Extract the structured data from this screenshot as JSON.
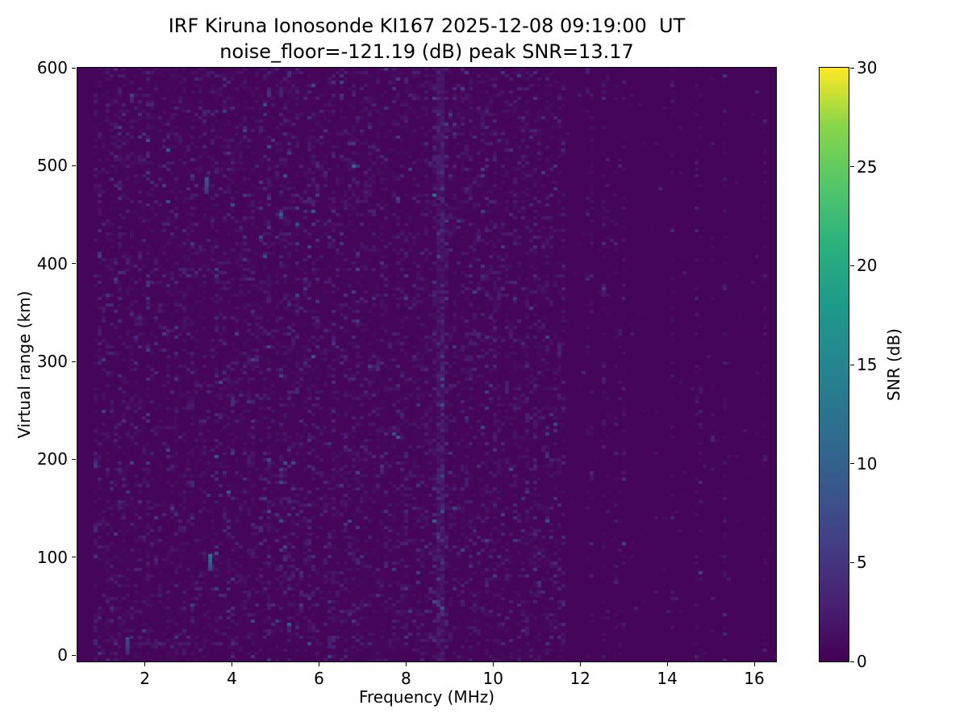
{
  "chart_data": {
    "type": "heatmap",
    "title": "IRF Kiruna Ionosonde KI167 2025-12-08 09:19:00  UT",
    "subtitle": "noise_floor=-121.19 (dB) peak SNR=13.17",
    "station": "IRF Kiruna Ionosonde KI167",
    "timestamp_ut": "2025-12-08 09:19:00 UT",
    "noise_floor_db": -121.19,
    "peak_snr_db": 13.17,
    "xlabel": "Frequency (MHz)",
    "ylabel": "Virtual range (km)",
    "xlim": [
      0.45,
      16.5
    ],
    "ylim": [
      0,
      600
    ],
    "xticks": [
      2,
      4,
      6,
      8,
      10,
      12,
      14,
      16
    ],
    "yticks": [
      0,
      100,
      200,
      300,
      400,
      500,
      600
    ],
    "grid": false,
    "colorbar": {
      "label": "SNR (dB)",
      "min": 0,
      "max": 30,
      "ticks": [
        0,
        5,
        10,
        15,
        20,
        25,
        30
      ],
      "colormap": "viridis",
      "colors": [
        "#440154",
        "#482173",
        "#433e85",
        "#38598c",
        "#2d708e",
        "#25858e",
        "#1e9a8a",
        "#2ab07f",
        "#52c569",
        "#86d549",
        "#fde725"
      ]
    },
    "heatmap": {
      "description": "Speckled low-SNR noise (0-6 dB) from 0.9 to 11.7 MHz over 0-600 km; quieter region above 11.7 MHz with sparse vertical interference stripes; faint elevated vertical band near 8.8 MHz; discrete echo spots.",
      "freq_range_mhz": [
        0.85,
        16.45
      ],
      "range_km": [
        0,
        600
      ],
      "background_snr_db": 0.4,
      "noise_region_max_freq_mhz": 11.7,
      "interference_band_mhz": 8.8,
      "quiet_region_stripe_fraction": 0.22,
      "features": [
        {
          "name": "peak-echo",
          "freq_mhz": 3.5,
          "range_km": 95,
          "snr_db": 13.17
        },
        {
          "name": "echo",
          "freq_mhz": 3.42,
          "range_km": 480,
          "snr_db": 9.5
        },
        {
          "name": "echo",
          "freq_mhz": 1.6,
          "range_km": 10,
          "snr_db": 8.0
        }
      ],
      "render_seed": 20251208
    }
  }
}
